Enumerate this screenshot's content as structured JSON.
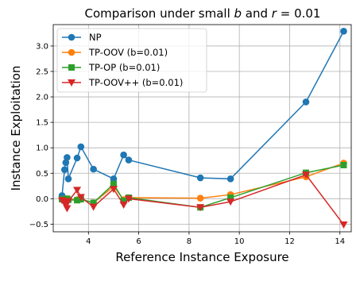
{
  "chart_data": {
    "type": "line",
    "title": "Comparison under small b and r = 0.01",
    "title_parts": {
      "pre": "Comparison under small ",
      "b": "b",
      "mid": " and ",
      "r": "r",
      "post": " = 0.01"
    },
    "xlabel": "Reference Instance Exposure",
    "ylabel": "Instance Exploitation",
    "xlim": [
      2.6,
      14.45
    ],
    "ylim": [
      -0.65,
      3.42
    ],
    "xticks": [
      4,
      6,
      8,
      10,
      12,
      14
    ],
    "yticks": [
      -0.5,
      0.0,
      0.5,
      1.0,
      1.5,
      2.0,
      2.5,
      3.0
    ],
    "ytick_labels": [
      "−0.5",
      "0.0",
      "0.5",
      "1.0",
      "1.5",
      "2.0",
      "2.5",
      "3.0"
    ],
    "grid": true,
    "legend_position": "top-left",
    "series": [
      {
        "name": "NP",
        "color": "#1f77b4",
        "marker": "circle",
        "points": [
          [
            2.95,
            0.06
          ],
          [
            3.05,
            0.57
          ],
          [
            3.1,
            0.71
          ],
          [
            3.15,
            0.81
          ],
          [
            3.2,
            0.39
          ],
          [
            3.55,
            0.8
          ],
          [
            3.7,
            1.02
          ],
          [
            4.2,
            0.58
          ],
          [
            5.0,
            0.39
          ],
          [
            5.4,
            0.86
          ],
          [
            5.6,
            0.76
          ],
          [
            8.45,
            0.41
          ],
          [
            9.65,
            0.39
          ],
          [
            12.65,
            1.9
          ],
          [
            14.15,
            3.29
          ]
        ]
      },
      {
        "name": "TP-OOV (b=0.01)",
        "color": "#ff7f0e",
        "marker": "circle",
        "points": [
          [
            2.95,
            -0.01
          ],
          [
            3.05,
            -0.01
          ],
          [
            3.1,
            -0.02
          ],
          [
            3.15,
            0.0
          ],
          [
            3.2,
            -0.01
          ],
          [
            3.55,
            -0.02
          ],
          [
            3.7,
            -0.01
          ],
          [
            4.2,
            -0.08
          ],
          [
            5.0,
            0.24
          ],
          [
            5.4,
            -0.02
          ],
          [
            5.6,
            0.02
          ],
          [
            8.45,
            0.01
          ],
          [
            9.65,
            0.08
          ],
          [
            12.65,
            0.43
          ],
          [
            14.15,
            0.7
          ]
        ]
      },
      {
        "name": "TP-OP (b=0.01)",
        "color": "#2ca02c",
        "marker": "square",
        "points": [
          [
            2.95,
            -0.01
          ],
          [
            3.05,
            -0.01
          ],
          [
            3.1,
            -0.03
          ],
          [
            3.15,
            0.0
          ],
          [
            3.2,
            -0.02
          ],
          [
            3.55,
            -0.03
          ],
          [
            3.7,
            -0.01
          ],
          [
            4.2,
            -0.08
          ],
          [
            5.0,
            0.29
          ],
          [
            5.4,
            -0.04
          ],
          [
            5.6,
            0.02
          ],
          [
            8.45,
            -0.17
          ],
          [
            9.65,
            0.02
          ],
          [
            12.65,
            0.51
          ],
          [
            14.15,
            0.66
          ]
        ]
      },
      {
        "name": "TP-OOV++ (b=0.01)",
        "color": "#d62728",
        "marker": "triangle-down",
        "points": [
          [
            2.95,
            -0.03
          ],
          [
            3.05,
            -0.07
          ],
          [
            3.1,
            -0.13
          ],
          [
            3.15,
            -0.19
          ],
          [
            3.2,
            -0.05
          ],
          [
            3.55,
            0.17
          ],
          [
            3.7,
            0.03
          ],
          [
            4.2,
            -0.16
          ],
          [
            5.0,
            0.19
          ],
          [
            5.4,
            -0.12
          ],
          [
            5.6,
            0.0
          ],
          [
            8.45,
            -0.17
          ],
          [
            9.65,
            -0.06
          ],
          [
            12.65,
            0.47
          ],
          [
            14.15,
            -0.51
          ]
        ]
      }
    ]
  }
}
